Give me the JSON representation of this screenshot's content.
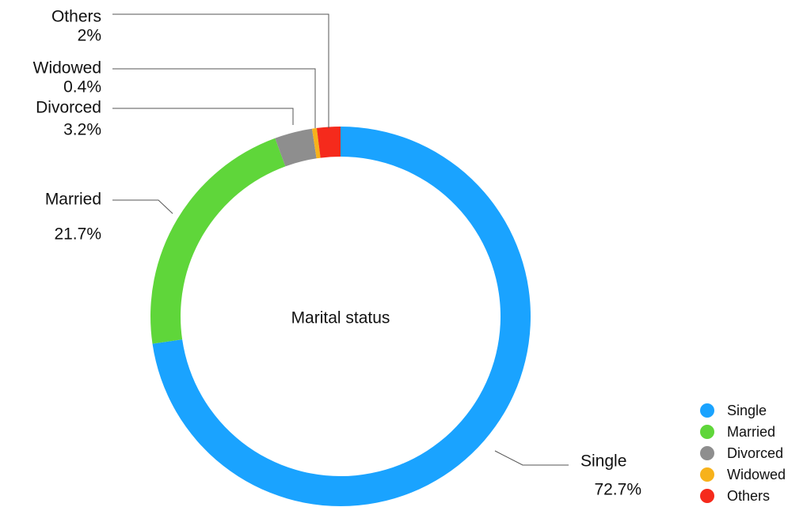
{
  "chart_data": {
    "type": "donut",
    "title": "Marital status",
    "categories": [
      "Single",
      "Married",
      "Divorced",
      "Widowed",
      "Others"
    ],
    "values": [
      72.7,
      21.7,
      3.2,
      0.4,
      2
    ],
    "value_labels": [
      "72.7%",
      "21.7%",
      "3.2%",
      "0.4%",
      "2%"
    ],
    "colors": [
      "#1aa3ff",
      "#5fd63a",
      "#8e8e8e",
      "#f7b21b",
      "#f52a1c"
    ],
    "legend": "bottom-right"
  }
}
